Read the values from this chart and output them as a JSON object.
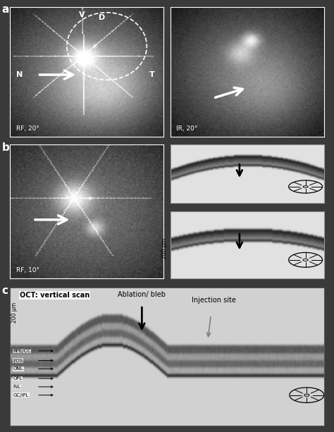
{
  "fig_width": 4.74,
  "fig_height": 6.13,
  "bg_color": "#3a3a3a",
  "panel_c_title": "OCT: vertical scan",
  "panel_c_layers": [
    "GC/IPL",
    "INL",
    "OPL",
    "ONL",
    "I/OS",
    "RPE/CC"
  ],
  "panel_c_scale": "200 μm",
  "panel_c_ablation": "Ablation/ bleb",
  "panel_c_injection": "Injection site"
}
